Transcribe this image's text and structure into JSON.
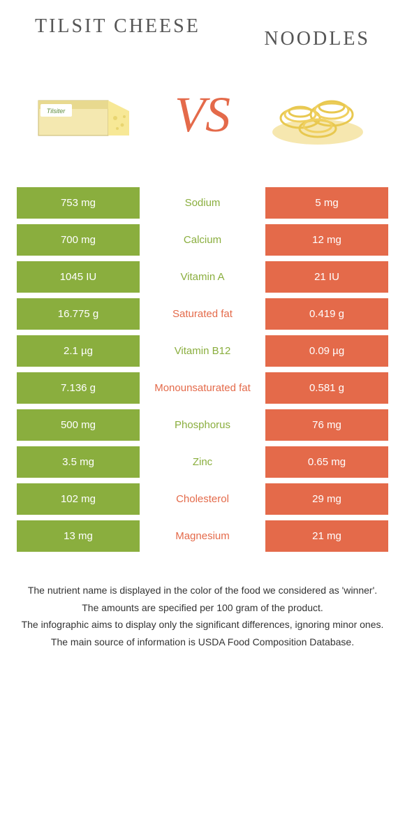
{
  "colors": {
    "green": "#8aae3e",
    "orange": "#e46a4a",
    "white": "#ffffff",
    "text": "#333333",
    "title": "#555555"
  },
  "header": {
    "left_title": "Tilsit cheese",
    "right_title": "Noodles",
    "vs": "VS"
  },
  "rows": [
    {
      "nutrient": "Sodium",
      "left": "753 mg",
      "right": "5 mg",
      "winner": "left"
    },
    {
      "nutrient": "Calcium",
      "left": "700 mg",
      "right": "12 mg",
      "winner": "left"
    },
    {
      "nutrient": "Vitamin A",
      "left": "1045 IU",
      "right": "21 IU",
      "winner": "left"
    },
    {
      "nutrient": "Saturated fat",
      "left": "16.775 g",
      "right": "0.419 g",
      "winner": "right"
    },
    {
      "nutrient": "Vitamin B12",
      "left": "2.1 µg",
      "right": "0.09 µg",
      "winner": "left"
    },
    {
      "nutrient": "Monounsaturated fat",
      "left": "7.136 g",
      "right": "0.581 g",
      "winner": "right"
    },
    {
      "nutrient": "Phosphorus",
      "left": "500 mg",
      "right": "76 mg",
      "winner": "left"
    },
    {
      "nutrient": "Zinc",
      "left": "3.5 mg",
      "right": "0.65 mg",
      "winner": "left"
    },
    {
      "nutrient": "Cholesterol",
      "left": "102 mg",
      "right": "29 mg",
      "winner": "right"
    },
    {
      "nutrient": "Magnesium",
      "left": "13 mg",
      "right": "21 mg",
      "winner": "right"
    }
  ],
  "footer": {
    "line1": "The nutrient name is displayed in the color of the food we considered as 'winner'.",
    "line2": "The amounts are specified per 100 gram of the product.",
    "line3": "The infographic aims to display only the significant differences, ignoring minor ones.",
    "line4": "The main source of information is USDA Food Composition Database."
  }
}
